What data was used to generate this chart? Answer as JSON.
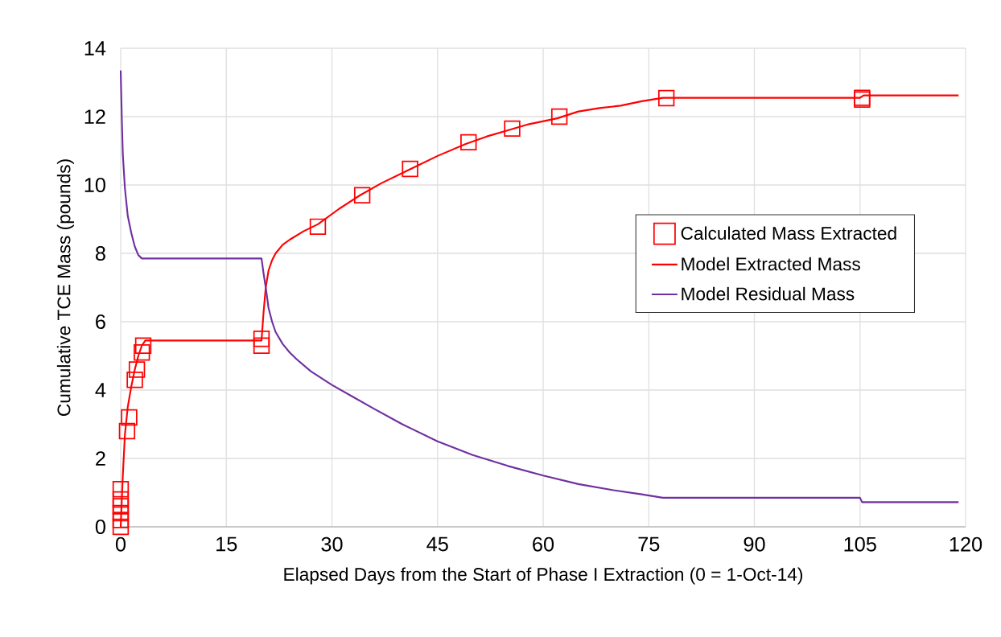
{
  "chart_data": {
    "type": "line",
    "xlabel": "Elapsed Days from the Start of Phase I Extraction (0 = 1-Oct-14)",
    "ylabel": "Cumulative TCE Mass (pounds)",
    "xlim": [
      0,
      120
    ],
    "ylim": [
      0,
      14
    ],
    "xticks": [
      0,
      15,
      30,
      45,
      60,
      75,
      90,
      105,
      120
    ],
    "yticks": [
      0,
      2,
      4,
      6,
      8,
      10,
      12,
      14
    ],
    "grid": true,
    "legend": "right",
    "series": [
      {
        "name": "Calculated Mass Extracted",
        "type": "scatter",
        "marker": "square",
        "color": "#ff0000",
        "x": [
          0,
          0,
          0,
          0,
          0,
          0,
          0.9,
          1.2,
          2.0,
          2.3,
          3.0,
          3.2,
          20,
          20,
          28,
          34.3,
          41.1,
          49.4,
          55.6,
          62.3,
          77.5,
          105.3,
          105.3
        ],
        "values": [
          0,
          0.2,
          0.4,
          0.6,
          0.8,
          1.1,
          2.8,
          3.2,
          4.3,
          4.6,
          5.1,
          5.3,
          5.3,
          5.5,
          8.78,
          9.7,
          10.47,
          11.25,
          11.65,
          12.0,
          12.54,
          12.5,
          12.55
        ]
      },
      {
        "name": "Model Extracted Mass",
        "marker": "none",
        "color": "#ff0000",
        "x": [
          0,
          0.3,
          0.6,
          1,
          1.5,
          2,
          2.5,
          3,
          3.5,
          20,
          20.3,
          20.6,
          21,
          21.5,
          22,
          23,
          24,
          26,
          28,
          31,
          34,
          37,
          41,
          45,
          49,
          52,
          55,
          58,
          62,
          65,
          68,
          71,
          74,
          77,
          105,
          105.5,
          119
        ],
        "values": [
          0,
          1.5,
          2.7,
          3.5,
          4.1,
          4.6,
          5.0,
          5.3,
          5.45,
          5.45,
          6.3,
          7.0,
          7.5,
          7.8,
          8.0,
          8.25,
          8.4,
          8.65,
          8.85,
          9.3,
          9.7,
          10.05,
          10.45,
          10.85,
          11.2,
          11.42,
          11.6,
          11.78,
          11.95,
          12.15,
          12.25,
          12.32,
          12.45,
          12.55,
          12.55,
          12.62,
          12.62
        ]
      },
      {
        "name": "Model Residual Mass",
        "marker": "none",
        "color": "#7030a0",
        "x": [
          0,
          0.15,
          0.3,
          0.6,
          1,
          1.5,
          2,
          2.5,
          3,
          20,
          20.3,
          20.6,
          21,
          21.5,
          22,
          23,
          24,
          25,
          27,
          30,
          33,
          36,
          40,
          45,
          50,
          55,
          60,
          65,
          70,
          74,
          77,
          105,
          105.3,
          119
        ],
        "values": [
          13.35,
          12.0,
          10.9,
          9.9,
          9.1,
          8.6,
          8.2,
          7.95,
          7.85,
          7.85,
          7.4,
          7.0,
          6.4,
          6.0,
          5.7,
          5.35,
          5.1,
          4.9,
          4.55,
          4.15,
          3.8,
          3.45,
          3.0,
          2.5,
          2.1,
          1.78,
          1.5,
          1.25,
          1.07,
          0.95,
          0.85,
          0.85,
          0.72,
          0.72
        ]
      }
    ]
  }
}
